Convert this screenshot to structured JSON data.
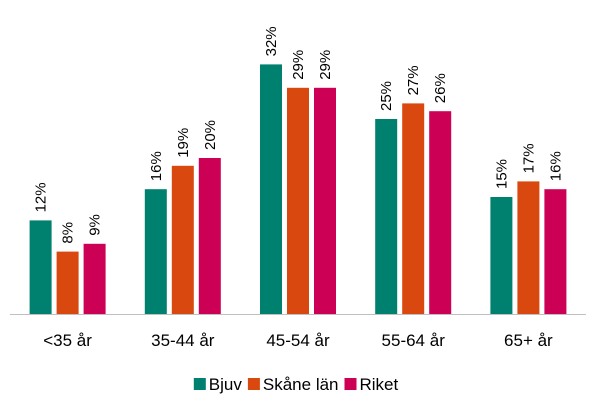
{
  "chart_data": {
    "type": "bar",
    "categories": [
      "<35 år",
      "35-44 år",
      "45-54 år",
      "55-64 år",
      "65+ år"
    ],
    "series": [
      {
        "name": "Bjuv",
        "color": "#00806E",
        "values": [
          12,
          16,
          32,
          25,
          15
        ],
        "labels": [
          "12%",
          "16%",
          "32%",
          "25%",
          "15%"
        ]
      },
      {
        "name": "Skåne län",
        "color": "#D9480F",
        "values": [
          8,
          19,
          29,
          27,
          17
        ],
        "labels": [
          "8%",
          "19%",
          "29%",
          "27%",
          "17%"
        ]
      },
      {
        "name": "Riket",
        "color": "#CC0055",
        "values": [
          9,
          20,
          29,
          26,
          16
        ],
        "labels": [
          "9%",
          "20%",
          "29%",
          "26%",
          "16%"
        ]
      }
    ],
    "ylim": [
      0,
      35
    ],
    "grid": false,
    "legend_position": "bottom-center",
    "title": "",
    "xlabel": "",
    "ylabel": ""
  }
}
